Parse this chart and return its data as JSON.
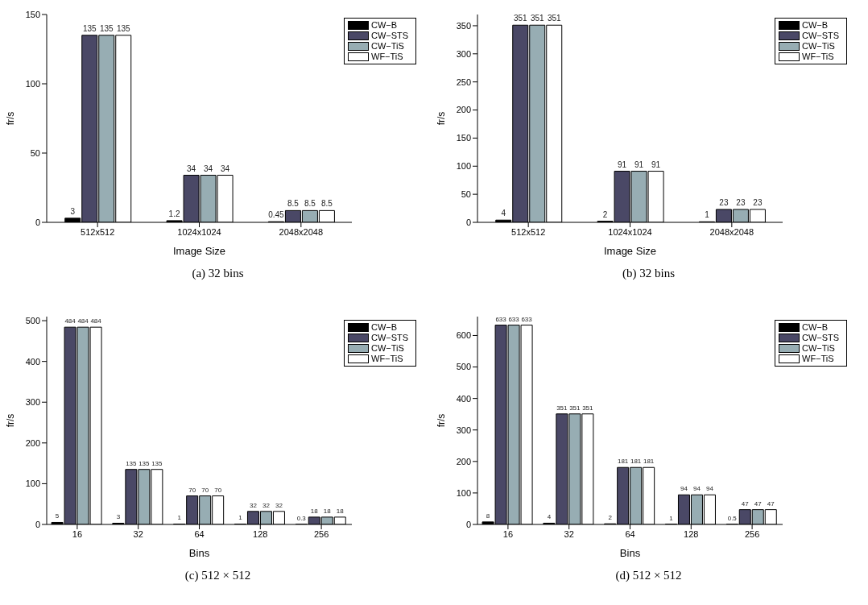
{
  "chart_data": [
    {
      "type": "bar",
      "title": "(a) 32 bins",
      "xlabel": "Image Size",
      "ylabel": "fr/s",
      "categories": [
        "512x512",
        "1024x1024",
        "2048x2048"
      ],
      "ylim": [
        0,
        150
      ],
      "yticks": [
        0,
        50,
        100,
        150
      ],
      "data_labels": true,
      "legend": "top right",
      "grid": false,
      "series": [
        {
          "name": "CW−B",
          "color": "#000000",
          "values": [
            3,
            1.2,
            0.45
          ]
        },
        {
          "name": "CW−STS",
          "color": "#4a4866",
          "values": [
            135,
            34,
            8.5
          ]
        },
        {
          "name": "CW−TiS",
          "color": "#97adb3",
          "values": [
            135,
            34,
            8.5
          ]
        },
        {
          "name": "WF−TiS",
          "color": "#ffffff",
          "values": [
            135,
            34,
            8.5
          ]
        }
      ]
    },
    {
      "type": "bar",
      "title": "(b) 32 bins",
      "xlabel": "Image Size",
      "ylabel": "fr/s",
      "categories": [
        "512x512",
        "1024x1024",
        "2048x2048"
      ],
      "ylim": [
        0,
        370
      ],
      "yticks": [
        0,
        50,
        100,
        150,
        200,
        250,
        300,
        350
      ],
      "data_labels": true,
      "legend": "top right",
      "grid": false,
      "series": [
        {
          "name": "CW−B",
          "color": "#000000",
          "values": [
            4,
            2,
            1
          ]
        },
        {
          "name": "CW−STS",
          "color": "#4a4866",
          "values": [
            351,
            91,
            23
          ]
        },
        {
          "name": "CW−TiS",
          "color": "#97adb3",
          "values": [
            351,
            91,
            23
          ]
        },
        {
          "name": "WF−TiS",
          "color": "#ffffff",
          "values": [
            351,
            91,
            23
          ]
        }
      ]
    },
    {
      "type": "bar",
      "title": "(c) 512 × 512",
      "xlabel": "Bins",
      "ylabel": "fr/s",
      "categories": [
        "16",
        "32",
        "64",
        "128",
        "256"
      ],
      "ylim": [
        0,
        510
      ],
      "yticks": [
        0,
        100,
        200,
        300,
        400,
        500
      ],
      "data_labels": true,
      "legend": "top right",
      "grid": false,
      "series": [
        {
          "name": "CW−B",
          "color": "#000000",
          "values": [
            5,
            3,
            1,
            1,
            0.3
          ]
        },
        {
          "name": "CW−STS",
          "color": "#4a4866",
          "values": [
            484,
            135,
            70,
            32,
            18
          ]
        },
        {
          "name": "CW−TiS",
          "color": "#97adb3",
          "values": [
            484,
            135,
            70,
            32,
            18
          ]
        },
        {
          "name": "WF−TiS",
          "color": "#ffffff",
          "values": [
            484,
            135,
            70,
            32,
            18
          ]
        }
      ]
    },
    {
      "type": "bar",
      "title": "(d) 512 × 512",
      "xlabel": "Bins",
      "ylabel": "fr/s",
      "categories": [
        "16",
        "32",
        "64",
        "128",
        "256"
      ],
      "ylim": [
        0,
        660
      ],
      "yticks": [
        0,
        100,
        200,
        300,
        400,
        500,
        600
      ],
      "data_labels": true,
      "legend": "top right",
      "grid": false,
      "series": [
        {
          "name": "CW−B",
          "color": "#000000",
          "values": [
            8,
            4,
            2,
            1,
            0.5
          ]
        },
        {
          "name": "CW−STS",
          "color": "#4a4866",
          "values": [
            633,
            351,
            181,
            94,
            47
          ]
        },
        {
          "name": "CW−TiS",
          "color": "#97adb3",
          "values": [
            633,
            351,
            181,
            94,
            47
          ]
        },
        {
          "name": "WF−TiS",
          "color": "#ffffff",
          "values": [
            633,
            351,
            181,
            94,
            47
          ]
        }
      ]
    }
  ]
}
